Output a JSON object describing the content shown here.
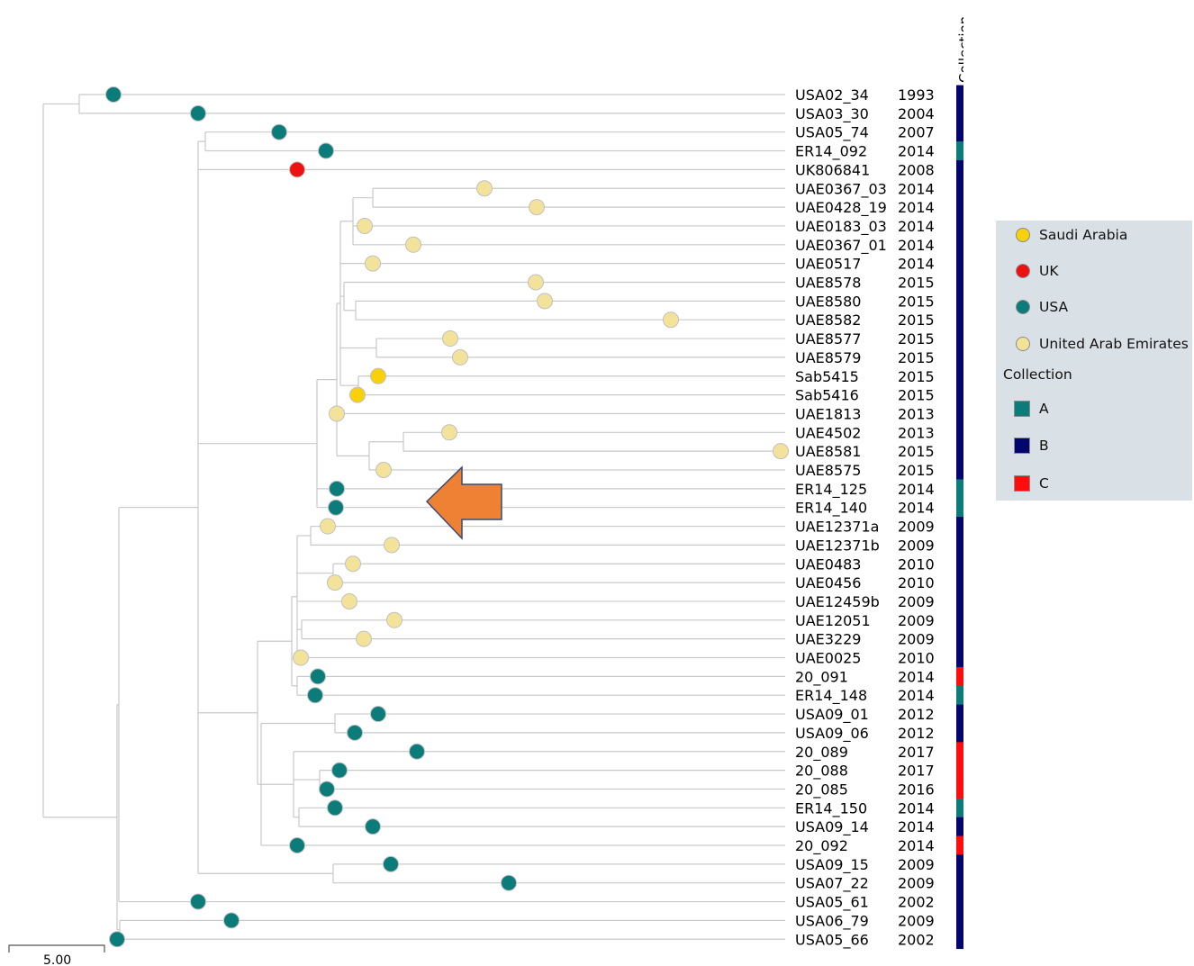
{
  "countries": [
    {
      "key": "SA",
      "name": "Saudi Arabia",
      "color": "#f8d10a"
    },
    {
      "key": "UK",
      "name": "UK",
      "color": "#ee1111"
    },
    {
      "key": "USA",
      "name": "USA",
      "color": "#0b7c79"
    },
    {
      "key": "UAE",
      "name": "United Arab Emirates",
      "color": "#f3e39a"
    }
  ],
  "collection_title": "Collection",
  "collections": [
    {
      "key": "A",
      "name": "A",
      "color": "#0b7c79"
    },
    {
      "key": "B",
      "name": "B",
      "color": "#02046f"
    },
    {
      "key": "C",
      "name": "C",
      "color": "#ff0d0d"
    }
  ],
  "scale_label": "5.00",
  "leaves": [
    {
      "name": "USA02_34",
      "year": "1993",
      "country": "USA",
      "collection": "B"
    },
    {
      "name": "USA03_30",
      "year": "2004",
      "country": "USA",
      "collection": "B"
    },
    {
      "name": "USA05_74",
      "year": "2007",
      "country": "USA",
      "collection": "B"
    },
    {
      "name": "ER14_092",
      "year": "2014",
      "country": "USA",
      "collection": "A"
    },
    {
      "name": "UK806841",
      "year": "2008",
      "country": "UK",
      "collection": "B"
    },
    {
      "name": "UAE0367_03",
      "year": "2014",
      "country": "UAE",
      "collection": "B"
    },
    {
      "name": "UAE0428_19",
      "year": "2014",
      "country": "UAE",
      "collection": "B"
    },
    {
      "name": "UAE0183_03",
      "year": "2014",
      "country": "UAE",
      "collection": "B"
    },
    {
      "name": "UAE0367_01",
      "year": "2014",
      "country": "UAE",
      "collection": "B"
    },
    {
      "name": "UAE0517",
      "year": "2014",
      "country": "UAE",
      "collection": "B"
    },
    {
      "name": "UAE8578",
      "year": "2015",
      "country": "UAE",
      "collection": "B"
    },
    {
      "name": "UAE8580",
      "year": "2015",
      "country": "UAE",
      "collection": "B"
    },
    {
      "name": "UAE8582",
      "year": "2015",
      "country": "UAE",
      "collection": "B"
    },
    {
      "name": "UAE8577",
      "year": "2015",
      "country": "UAE",
      "collection": "B"
    },
    {
      "name": "UAE8579",
      "year": "2015",
      "country": "UAE",
      "collection": "B"
    },
    {
      "name": "Sab5415",
      "year": "2015",
      "country": "SA",
      "collection": "B"
    },
    {
      "name": "Sab5416",
      "year": "2015",
      "country": "SA",
      "collection": "B"
    },
    {
      "name": "UAE1813",
      "year": "2013",
      "country": "UAE",
      "collection": "B"
    },
    {
      "name": "UAE4502",
      "year": "2013",
      "country": "UAE",
      "collection": "B"
    },
    {
      "name": "UAE8581",
      "year": "2015",
      "country": "UAE",
      "collection": "B"
    },
    {
      "name": "UAE8575",
      "year": "2015",
      "country": "UAE",
      "collection": "B"
    },
    {
      "name": "ER14_125",
      "year": "2014",
      "country": "USA",
      "collection": "A"
    },
    {
      "name": "ER14_140",
      "year": "2014",
      "country": "USA",
      "collection": "A"
    },
    {
      "name": "UAE12371a",
      "year": "2009",
      "country": "UAE",
      "collection": "B"
    },
    {
      "name": "UAE12371b",
      "year": "2009",
      "country": "UAE",
      "collection": "B"
    },
    {
      "name": "UAE0483",
      "year": "2010",
      "country": "UAE",
      "collection": "B"
    },
    {
      "name": "UAE0456",
      "year": "2010",
      "country": "UAE",
      "collection": "B"
    },
    {
      "name": "UAE12459b",
      "year": "2009",
      "country": "UAE",
      "collection": "B"
    },
    {
      "name": "UAE12051",
      "year": "2009",
      "country": "UAE",
      "collection": "B"
    },
    {
      "name": "UAE3229",
      "year": "2009",
      "country": "UAE",
      "collection": "B"
    },
    {
      "name": "UAE0025",
      "year": "2010",
      "country": "UAE",
      "collection": "B"
    },
    {
      "name": "20_091",
      "year": "2014",
      "country": "USA",
      "collection": "C"
    },
    {
      "name": "ER14_148",
      "year": "2014",
      "country": "USA",
      "collection": "A"
    },
    {
      "name": "USA09_01",
      "year": "2012",
      "country": "USA",
      "collection": "B"
    },
    {
      "name": "USA09_06",
      "year": "2012",
      "country": "USA",
      "collection": "B"
    },
    {
      "name": "20_089",
      "year": "2017",
      "country": "USA",
      "collection": "C"
    },
    {
      "name": "20_088",
      "year": "2017",
      "country": "USA",
      "collection": "C"
    },
    {
      "name": "20_085",
      "year": "2016",
      "country": "USA",
      "collection": "C"
    },
    {
      "name": "ER14_150",
      "year": "2014",
      "country": "USA",
      "collection": "A"
    },
    {
      "name": "USA09_14",
      "year": "2014",
      "country": "USA",
      "collection": "B"
    },
    {
      "name": "20_092",
      "year": "2014",
      "country": "USA",
      "collection": "C"
    },
    {
      "name": "USA09_15",
      "year": "2009",
      "country": "USA",
      "collection": "B"
    },
    {
      "name": "USA07_22",
      "year": "2009",
      "country": "USA",
      "collection": "B"
    },
    {
      "name": "USA05_61",
      "year": "2002",
      "country": "USA",
      "collection": "B"
    },
    {
      "name": "USA06_79",
      "year": "2009",
      "country": "USA",
      "collection": "B"
    },
    {
      "name": "USA05_66",
      "year": "2002",
      "country": "USA",
      "collection": "B"
    }
  ]
}
